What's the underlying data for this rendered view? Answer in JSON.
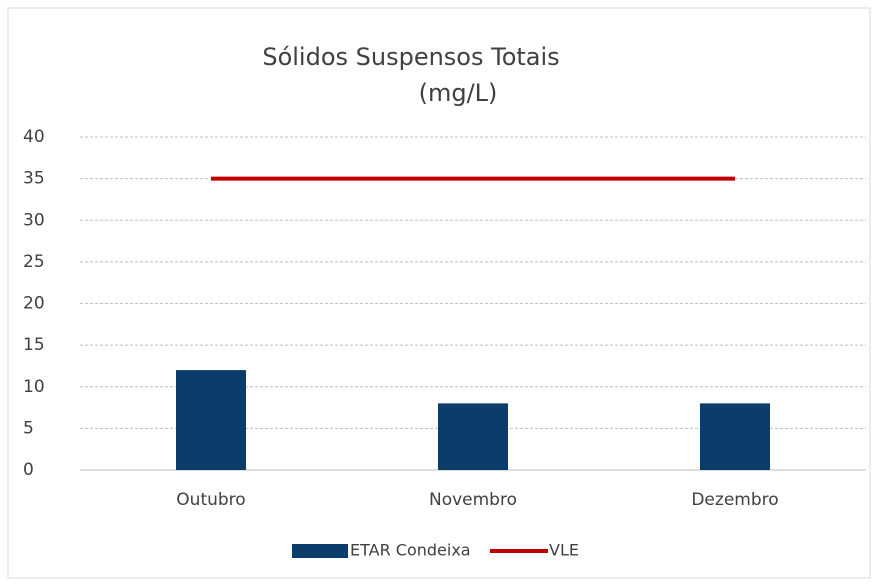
{
  "chart_data": {
    "type": "bar",
    "title": [
      "Sólidos Suspensos Totais",
      "(mg/L)"
    ],
    "categories": [
      "Outubro",
      "Novembro",
      "Dezembro"
    ],
    "series": [
      {
        "name": "ETAR Condeixa",
        "type": "bar",
        "color": "#0b3c6a",
        "values": [
          12,
          8,
          8
        ]
      },
      {
        "name": "VLE",
        "type": "line",
        "color": "#c00000",
        "values": [
          35,
          35,
          35
        ]
      }
    ],
    "ylim": [
      0,
      40
    ],
    "yticks": [
      0,
      5,
      10,
      15,
      20,
      25,
      30,
      35,
      40
    ],
    "grid": true,
    "legend": "bottom"
  }
}
